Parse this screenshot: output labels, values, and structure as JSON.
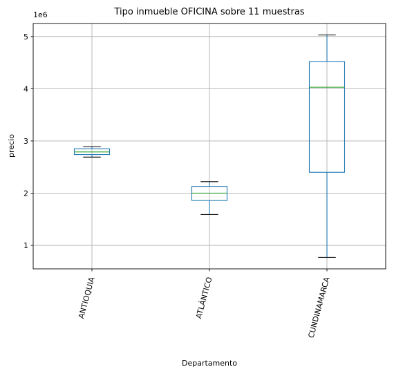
{
  "chart_data": {
    "type": "box",
    "title": "Tipo inmueble OFICINA sobre 11 muestras",
    "xlabel": "Departamento",
    "ylabel": "precio",
    "y_offset_label": "1e6",
    "categories": [
      "ANTIOQUIA",
      "ATLÁNTICO",
      "CUNDINAMARCA"
    ],
    "boxes": [
      {
        "category": "ANTIOQUIA",
        "whisker_low": 2.69,
        "q1": 2.74,
        "median": 2.79,
        "q3": 2.85,
        "whisker_high": 2.89
      },
      {
        "category": "ATLÁNTICO",
        "whisker_low": 1.59,
        "q1": 1.86,
        "median": 2.0,
        "q3": 2.13,
        "whisker_high": 2.22
      },
      {
        "category": "CUNDINAMARCA",
        "whisker_low": 0.77,
        "q1": 2.4,
        "median": 4.03,
        "q3": 4.52,
        "whisker_high": 5.03
      }
    ],
    "ylim": [
      0.55,
      5.25
    ],
    "yticks": [
      1,
      2,
      3,
      4,
      5
    ],
    "ytick_labels": [
      "1",
      "2",
      "3",
      "4",
      "5"
    ],
    "grid": true,
    "legend": "none",
    "colors": {
      "box": "#1f77b4",
      "median": "#2ca02c",
      "whisker": "#1f77b4",
      "cap": "#000000",
      "grid": "#b0b0b0"
    }
  }
}
